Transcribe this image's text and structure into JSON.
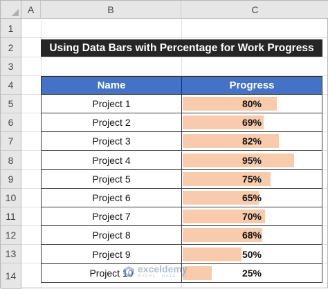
{
  "columns": {
    "a": "A",
    "b": "B",
    "c": "C"
  },
  "rows": [
    "1",
    "2",
    "3",
    "4",
    "5",
    "6",
    "7",
    "8",
    "9",
    "10",
    "11",
    "12",
    "13",
    "14"
  ],
  "title": "Using Data Bars with Percentage for Work Progress",
  "table": {
    "headers": {
      "name": "Name",
      "progress": "Progress"
    },
    "items": [
      {
        "name": "Project 1",
        "progress": "80%",
        "fraction": 0.8
      },
      {
        "name": "Project 2",
        "progress": "69%",
        "fraction": 0.69
      },
      {
        "name": "Project 3",
        "progress": "82%",
        "fraction": 0.82
      },
      {
        "name": "Project 4",
        "progress": "95%",
        "fraction": 0.95
      },
      {
        "name": "Project 5",
        "progress": "75%",
        "fraction": 0.75
      },
      {
        "name": "Project 6",
        "progress": "65%",
        "fraction": 0.65
      },
      {
        "name": "Project 7",
        "progress": "70%",
        "fraction": 0.7
      },
      {
        "name": "Project 8",
        "progress": "68%",
        "fraction": 0.68
      },
      {
        "name": "Project 9",
        "progress": "50%",
        "fraction": 0.5
      },
      {
        "name": "Project 10",
        "progress": "25%",
        "fraction": 0.25
      }
    ]
  },
  "colors": {
    "header_fill": "#4472c4",
    "title_fill": "#262626",
    "data_bar": "#f8cbad"
  },
  "watermark": {
    "name": "exceldemy",
    "tagline": "EXCEL · DATA · BI"
  }
}
